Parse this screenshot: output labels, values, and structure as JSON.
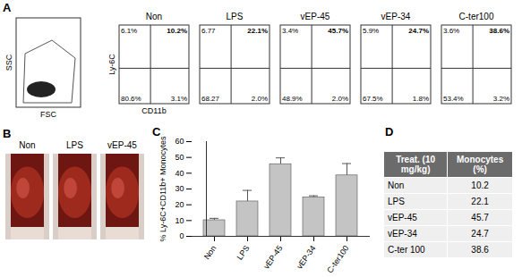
{
  "panel_a": {
    "letter": "A",
    "gate_plot": {
      "x_label": "FSC",
      "y_label": "SSC"
    },
    "x_label": "CD11b",
    "y_label": "Ly-6C",
    "plots": [
      {
        "title": "Non",
        "upper_left": "6.1%",
        "upper_right": "10.2%",
        "lower_left": "80.6%",
        "lower_right": "3.1%"
      },
      {
        "title": "LPS",
        "upper_left": "6.77",
        "upper_right": "22.1%",
        "lower_left": "68.27",
        "lower_right": "2.0%"
      },
      {
        "title": "vEP-45",
        "upper_left": "3.4%",
        "upper_right": "45.7%",
        "lower_left": "48.9%",
        "lower_right": "2.0%"
      },
      {
        "title": "vEP-34",
        "upper_left": "5.9%",
        "upper_right": "24.7%",
        "lower_left": "67.5%",
        "lower_right": "1.8%"
      },
      {
        "title": "C-ter100",
        "upper_left": "3.6%",
        "upper_right": "38.6%",
        "lower_left": "53.4%",
        "lower_right": "3.2%"
      }
    ]
  },
  "panel_b": {
    "letter": "B",
    "photos": [
      "Non",
      "LPS",
      "vEP-45"
    ]
  },
  "panel_c": {
    "letter": "C"
  },
  "chart_data": {
    "type": "bar",
    "categories": [
      "Non",
      "LPS",
      "vEP-45",
      "vEP-34",
      "C-ter100"
    ],
    "values": [
      10.2,
      22.1,
      45.7,
      24.7,
      38.6
    ],
    "errors": [
      1.2,
      7,
      4,
      1,
      7.5
    ],
    "color": "#c4c4c4",
    "ylim": [
      0,
      60
    ],
    "yticks": [
      0,
      10,
      20,
      30,
      40,
      50,
      60
    ],
    "y_label": "% Ly-6C+CD11b+ Monocytes"
  },
  "panel_d": {
    "letter": "D",
    "table": {
      "header": [
        "Treat. (10 mg/kg)",
        "Monocytes (%)"
      ],
      "rows": [
        [
          "Non",
          "10.2"
        ],
        [
          "LPS",
          "22.1"
        ],
        [
          "vEP-45",
          "45.7"
        ],
        [
          "vEP-34",
          "24.7"
        ],
        [
          "C-ter 100",
          "38.6"
        ]
      ]
    }
  }
}
